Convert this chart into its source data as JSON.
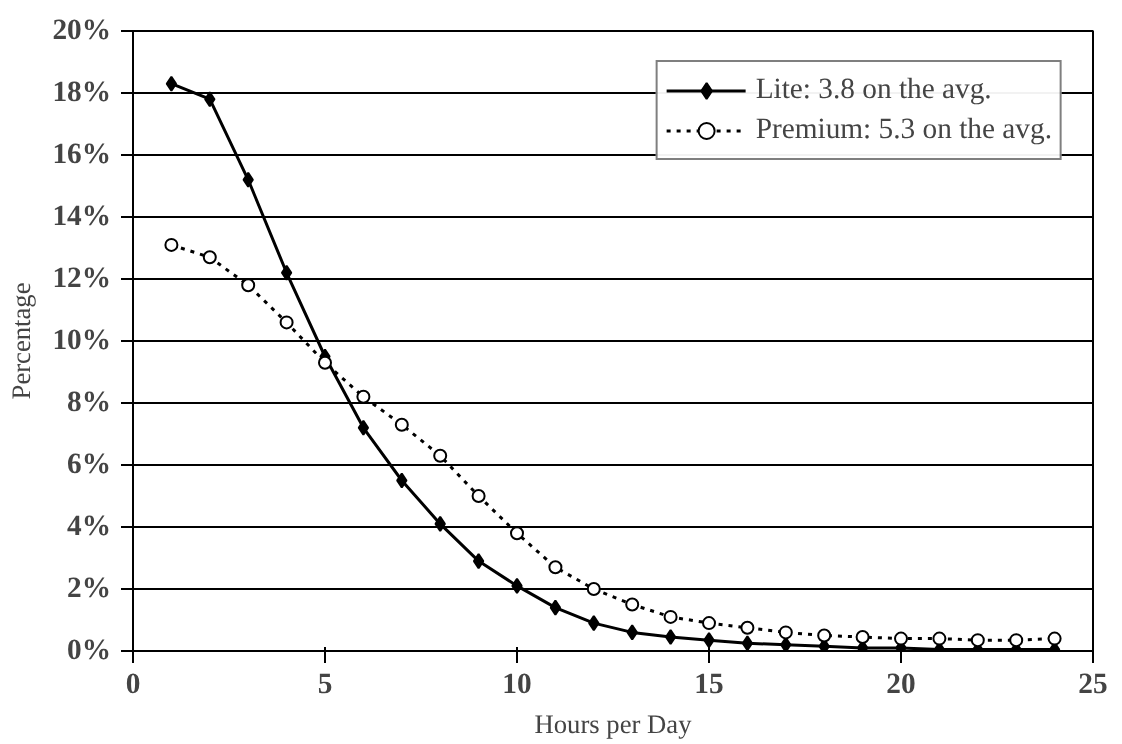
{
  "chart_data": {
    "type": "line",
    "xlabel": "Hours per Day",
    "ylabel": "Percentage",
    "x": [
      1,
      2,
      3,
      4,
      5,
      6,
      7,
      8,
      9,
      10,
      11,
      12,
      13,
      14,
      15,
      16,
      17,
      18,
      19,
      20,
      21,
      22,
      23,
      24
    ],
    "series": [
      {
        "name": "Lite: 3.8 on the avg.",
        "color": "#000000",
        "line_style": "solid",
        "marker": "diamond",
        "values": [
          18.3,
          17.8,
          15.2,
          12.2,
          9.5,
          7.2,
          5.5,
          4.1,
          2.9,
          2.1,
          1.4,
          0.9,
          0.6,
          0.45,
          0.35,
          0.25,
          0.2,
          0.15,
          0.1,
          0.1,
          0.05,
          0.05,
          0.05,
          0.05
        ]
      },
      {
        "name": "Premium: 5.3 on the avg.",
        "color": "#000000",
        "line_style": "dotted",
        "marker": "circle",
        "values": [
          13.1,
          12.7,
          11.8,
          10.6,
          9.3,
          8.2,
          7.3,
          6.3,
          5.0,
          3.8,
          2.7,
          2.0,
          1.5,
          1.1,
          0.9,
          0.75,
          0.6,
          0.5,
          0.45,
          0.4,
          0.4,
          0.35,
          0.35,
          0.4
        ]
      }
    ],
    "xlim": [
      0,
      25
    ],
    "xticks": [
      0,
      5,
      10,
      15,
      20,
      25
    ],
    "ylim": [
      0,
      20
    ],
    "yticks": [
      {
        "value": 0,
        "label": "0%"
      },
      {
        "value": 2,
        "label": "2%"
      },
      {
        "value": 4,
        "label": "4%"
      },
      {
        "value": 6,
        "label": "6%"
      },
      {
        "value": 8,
        "label": "8%"
      },
      {
        "value": 10,
        "label": "10%"
      },
      {
        "value": 12,
        "label": "12%"
      },
      {
        "value": 14,
        "label": "14%"
      },
      {
        "value": 16,
        "label": "16%"
      },
      {
        "value": 18,
        "label": "18%"
      },
      {
        "value": 20,
        "label": "20%"
      }
    ],
    "grid": "y",
    "legend": "top right"
  }
}
